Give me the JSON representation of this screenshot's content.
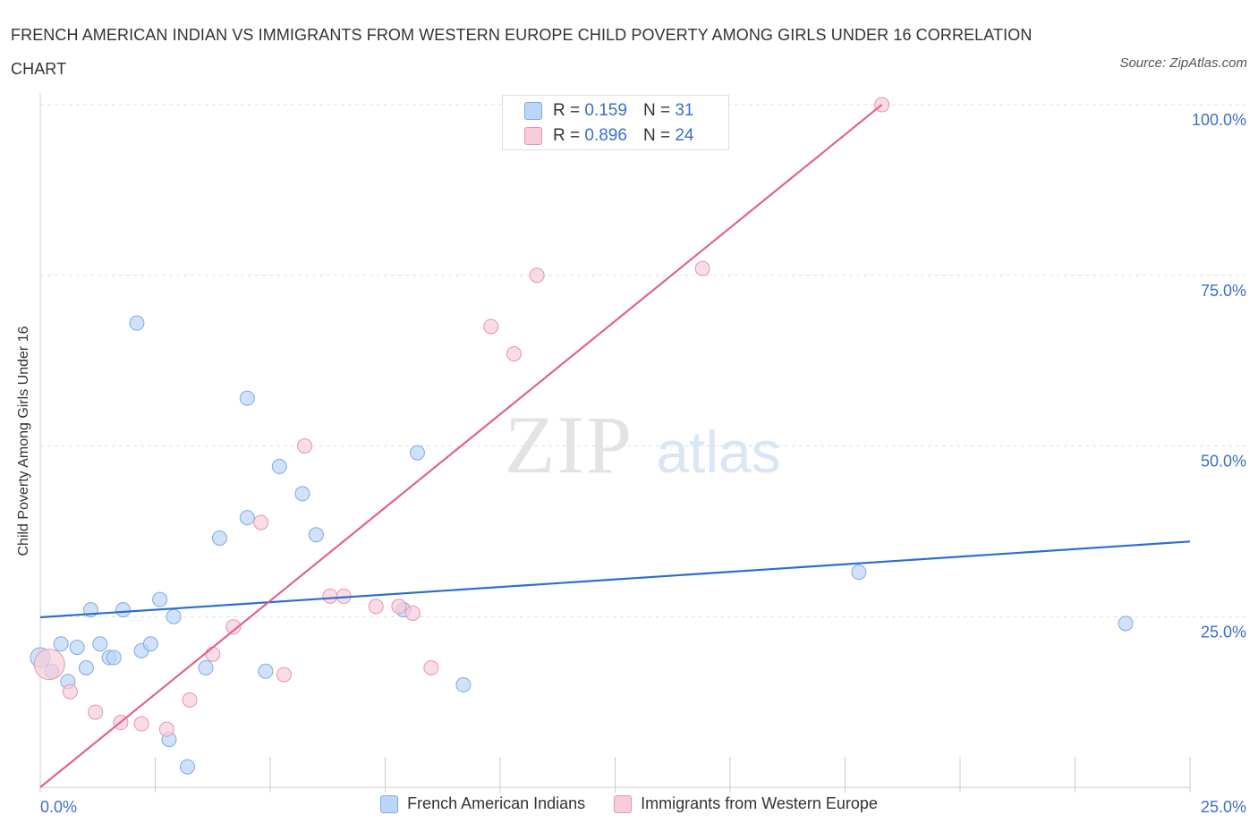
{
  "title": "FRENCH AMERICAN INDIAN VS IMMIGRANTS FROM WESTERN EUROPE CHILD POVERTY AMONG GIRLS UNDER 16 CORRELATION CHART",
  "source": "Source: ZipAtlas.com",
  "watermark": {
    "zip": "ZIP",
    "atlas": "atlas"
  },
  "colors": {
    "blue_fill": "#bcd6f7",
    "blue_stroke": "#7fa9e3",
    "blue_line": "#2a6fcf",
    "pink_fill": "#f8cddb",
    "pink_stroke": "#e893b0",
    "pink_line": "#e0648c",
    "tick_label": "#3b6fc9",
    "grid": "#dddddd"
  },
  "stats": {
    "rows": [
      {
        "r_label": "R =",
        "r_value": "0.159",
        "n_label": "N =",
        "n_value": "31"
      },
      {
        "r_label": "R =",
        "r_value": "0.896",
        "n_label": "N =",
        "n_value": "24"
      }
    ]
  },
  "legend": {
    "items": [
      "French American Indians",
      "Immigrants from Western Europe"
    ]
  },
  "chart_data": {
    "type": "scatter",
    "title": "FRENCH AMERICAN INDIAN VS IMMIGRANTS FROM WESTERN EUROPE CHILD POVERTY AMONG GIRLS UNDER 16 CORRELATION CHART",
    "xlabel": "",
    "ylabel": "Child Poverty Among Girls Under 16",
    "xlim": [
      0,
      25
    ],
    "ylim": [
      0,
      100
    ],
    "x_tick_labels": [
      "0.0%",
      "25.0%"
    ],
    "y_tick_labels": [
      "100.0%",
      "75.0%",
      "50.0%",
      "25.0%"
    ],
    "y_ticks": [
      100,
      75,
      50,
      25
    ],
    "grid": true,
    "legend_placement": "bottom",
    "series": [
      {
        "name": "French American Indians",
        "color": "#2a6fcf",
        "r": 0.159,
        "n": 31,
        "trend": {
          "x": [
            0,
            25
          ],
          "y": [
            24.9,
            36.0
          ]
        },
        "points": [
          {
            "x": 0.0,
            "y": 19.0
          },
          {
            "x": 0.25,
            "y": 17.0
          },
          {
            "x": 0.45,
            "y": 21.0
          },
          {
            "x": 0.6,
            "y": 15.5
          },
          {
            "x": 0.8,
            "y": 20.5
          },
          {
            "x": 1.0,
            "y": 17.5
          },
          {
            "x": 1.1,
            "y": 26.0
          },
          {
            "x": 1.3,
            "y": 21.0
          },
          {
            "x": 1.5,
            "y": 19.0
          },
          {
            "x": 1.6,
            "y": 19.0
          },
          {
            "x": 1.8,
            "y": 26.0
          },
          {
            "x": 2.1,
            "y": 68.0
          },
          {
            "x": 2.2,
            "y": 20.0
          },
          {
            "x": 2.4,
            "y": 21.0
          },
          {
            "x": 2.6,
            "y": 27.5
          },
          {
            "x": 2.8,
            "y": 7.0
          },
          {
            "x": 2.9,
            "y": 25.0
          },
          {
            "x": 3.2,
            "y": 3.0
          },
          {
            "x": 3.6,
            "y": 17.5
          },
          {
            "x": 3.9,
            "y": 36.5
          },
          {
            "x": 4.5,
            "y": 57.0
          },
          {
            "x": 4.5,
            "y": 39.5
          },
          {
            "x": 4.9,
            "y": 17.0
          },
          {
            "x": 5.2,
            "y": 47.0
          },
          {
            "x": 5.7,
            "y": 43.0
          },
          {
            "x": 6.0,
            "y": 37.0
          },
          {
            "x": 7.9,
            "y": 26.0
          },
          {
            "x": 8.2,
            "y": 49.0
          },
          {
            "x": 9.2,
            "y": 15.0
          },
          {
            "x": 17.8,
            "y": 31.5
          },
          {
            "x": 23.6,
            "y": 24.0
          }
        ]
      },
      {
        "name": "Immigrants from Western Europe",
        "color": "#e0648c",
        "r": 0.896,
        "n": 24,
        "trend": {
          "x": [
            0,
            18.3
          ],
          "y": [
            0,
            100
          ]
        },
        "points": [
          {
            "x": 0.2,
            "y": 18.0
          },
          {
            "x": 0.65,
            "y": 14.0
          },
          {
            "x": 1.2,
            "y": 11.0
          },
          {
            "x": 1.75,
            "y": 9.5
          },
          {
            "x": 2.2,
            "y": 9.3
          },
          {
            "x": 2.75,
            "y": 8.5
          },
          {
            "x": 3.25,
            "y": 12.8
          },
          {
            "x": 3.75,
            "y": 19.5
          },
          {
            "x": 4.2,
            "y": 23.5
          },
          {
            "x": 4.8,
            "y": 38.8
          },
          {
            "x": 5.3,
            "y": 16.5
          },
          {
            "x": 5.75,
            "y": 50.0
          },
          {
            "x": 6.3,
            "y": 28.0
          },
          {
            "x": 6.6,
            "y": 28.0
          },
          {
            "x": 7.3,
            "y": 26.5
          },
          {
            "x": 7.8,
            "y": 26.5
          },
          {
            "x": 8.1,
            "y": 25.5
          },
          {
            "x": 8.5,
            "y": 17.5
          },
          {
            "x": 9.8,
            "y": 67.5
          },
          {
            "x": 10.3,
            "y": 63.5
          },
          {
            "x": 10.8,
            "y": 75.0
          },
          {
            "x": 14.4,
            "y": 76.0
          },
          {
            "x": 14.7,
            "y": 100.0
          },
          {
            "x": 18.3,
            "y": 100.0
          }
        ]
      }
    ]
  }
}
